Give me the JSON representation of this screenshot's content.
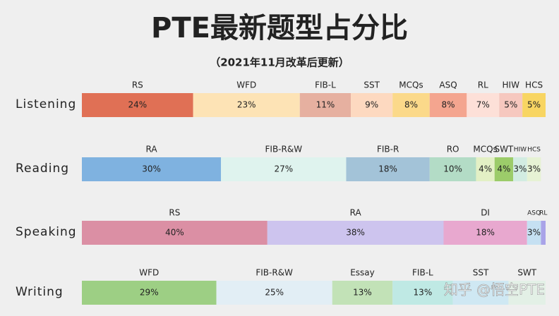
{
  "chart_data": {
    "type": "stacked-bar",
    "title": "PTE最新题型占分比",
    "subtitle": "（2021年11月改革后更新）",
    "watermark": "知乎 @悟空PTE",
    "groups": [
      {
        "name": "Listening",
        "segments": [
          {
            "name": "RS",
            "value": 24,
            "label": "24%",
            "color": "#e07055"
          },
          {
            "name": "WFD",
            "value": 23,
            "label": "23%",
            "color": "#fde3b5"
          },
          {
            "name": "FIB-L",
            "value": 11,
            "label": "11%",
            "color": "#e6b0a0"
          },
          {
            "name": "SST",
            "value": 9,
            "label": "9%",
            "color": "#fdd9c0"
          },
          {
            "name": "MCQs",
            "value": 8,
            "label": "8%",
            "color": "#fbd98a"
          },
          {
            "name": "ASQ",
            "value": 8,
            "label": "8%",
            "color": "#f4a58f"
          },
          {
            "name": "RL",
            "value": 7,
            "label": "7%",
            "color": "#fde0d8"
          },
          {
            "name": "HIW",
            "value": 5,
            "label": "5%",
            "color": "#f6c8bf"
          },
          {
            "name": "HCS",
            "value": 5,
            "label": "5%",
            "color": "#f8d562"
          }
        ]
      },
      {
        "name": "Reading",
        "segments": [
          {
            "name": "RA",
            "value": 30,
            "label": "30%",
            "color": "#7fb2e0"
          },
          {
            "name": "FIB-R&W",
            "value": 27,
            "label": "27%",
            "color": "#dff3ee"
          },
          {
            "name": "FIB-R",
            "value": 18,
            "label": "18%",
            "color": "#a3c3d8"
          },
          {
            "name": "RO",
            "value": 10,
            "label": "10%",
            "color": "#b3dcc6"
          },
          {
            "name": "MCQs",
            "value": 4,
            "label": "4%",
            "color": "#e3f0c5"
          },
          {
            "name": "SWT",
            "value": 4,
            "label": "4%",
            "color": "#9ccc6a"
          },
          {
            "name": "HIW",
            "value": 3,
            "label": "3%",
            "color": "#d2ece2"
          },
          {
            "name": "HCS",
            "value": 3,
            "label": "3%",
            "color": "#e6f2d4"
          }
        ]
      },
      {
        "name": "Speaking",
        "segments": [
          {
            "name": "RS",
            "value": 40,
            "label": "40%",
            "color": "#db8fa4"
          },
          {
            "name": "RA",
            "value": 38,
            "label": "38%",
            "color": "#cdc4ee"
          },
          {
            "name": "DI",
            "value": 18,
            "label": "18%",
            "color": "#e8a8cf"
          },
          {
            "name": "ASQ",
            "value": 3,
            "label": "3%",
            "color": "#c5e0f2"
          },
          {
            "name": "RL",
            "value": 1,
            "label": null,
            "color": "#a9a3e8"
          }
        ]
      },
      {
        "name": "Writing",
        "segments": [
          {
            "name": "WFD",
            "value": 29,
            "label": "29%",
            "color": "#9dcf84"
          },
          {
            "name": "FIB-R&W",
            "value": 25,
            "label": "25%",
            "color": "#e2eef5"
          },
          {
            "name": "Essay",
            "value": 13,
            "label": "13%",
            "color": "#c2e2b7"
          },
          {
            "name": "FIB-L",
            "value": 13,
            "label": "13%",
            "color": "#bfe9e4"
          },
          {
            "name": "SST",
            "value": 12,
            "label": null,
            "color": "#cfe8f3"
          },
          {
            "name": "SWT",
            "value": 8,
            "label": null,
            "color": "#e3f0e6"
          }
        ]
      }
    ]
  }
}
